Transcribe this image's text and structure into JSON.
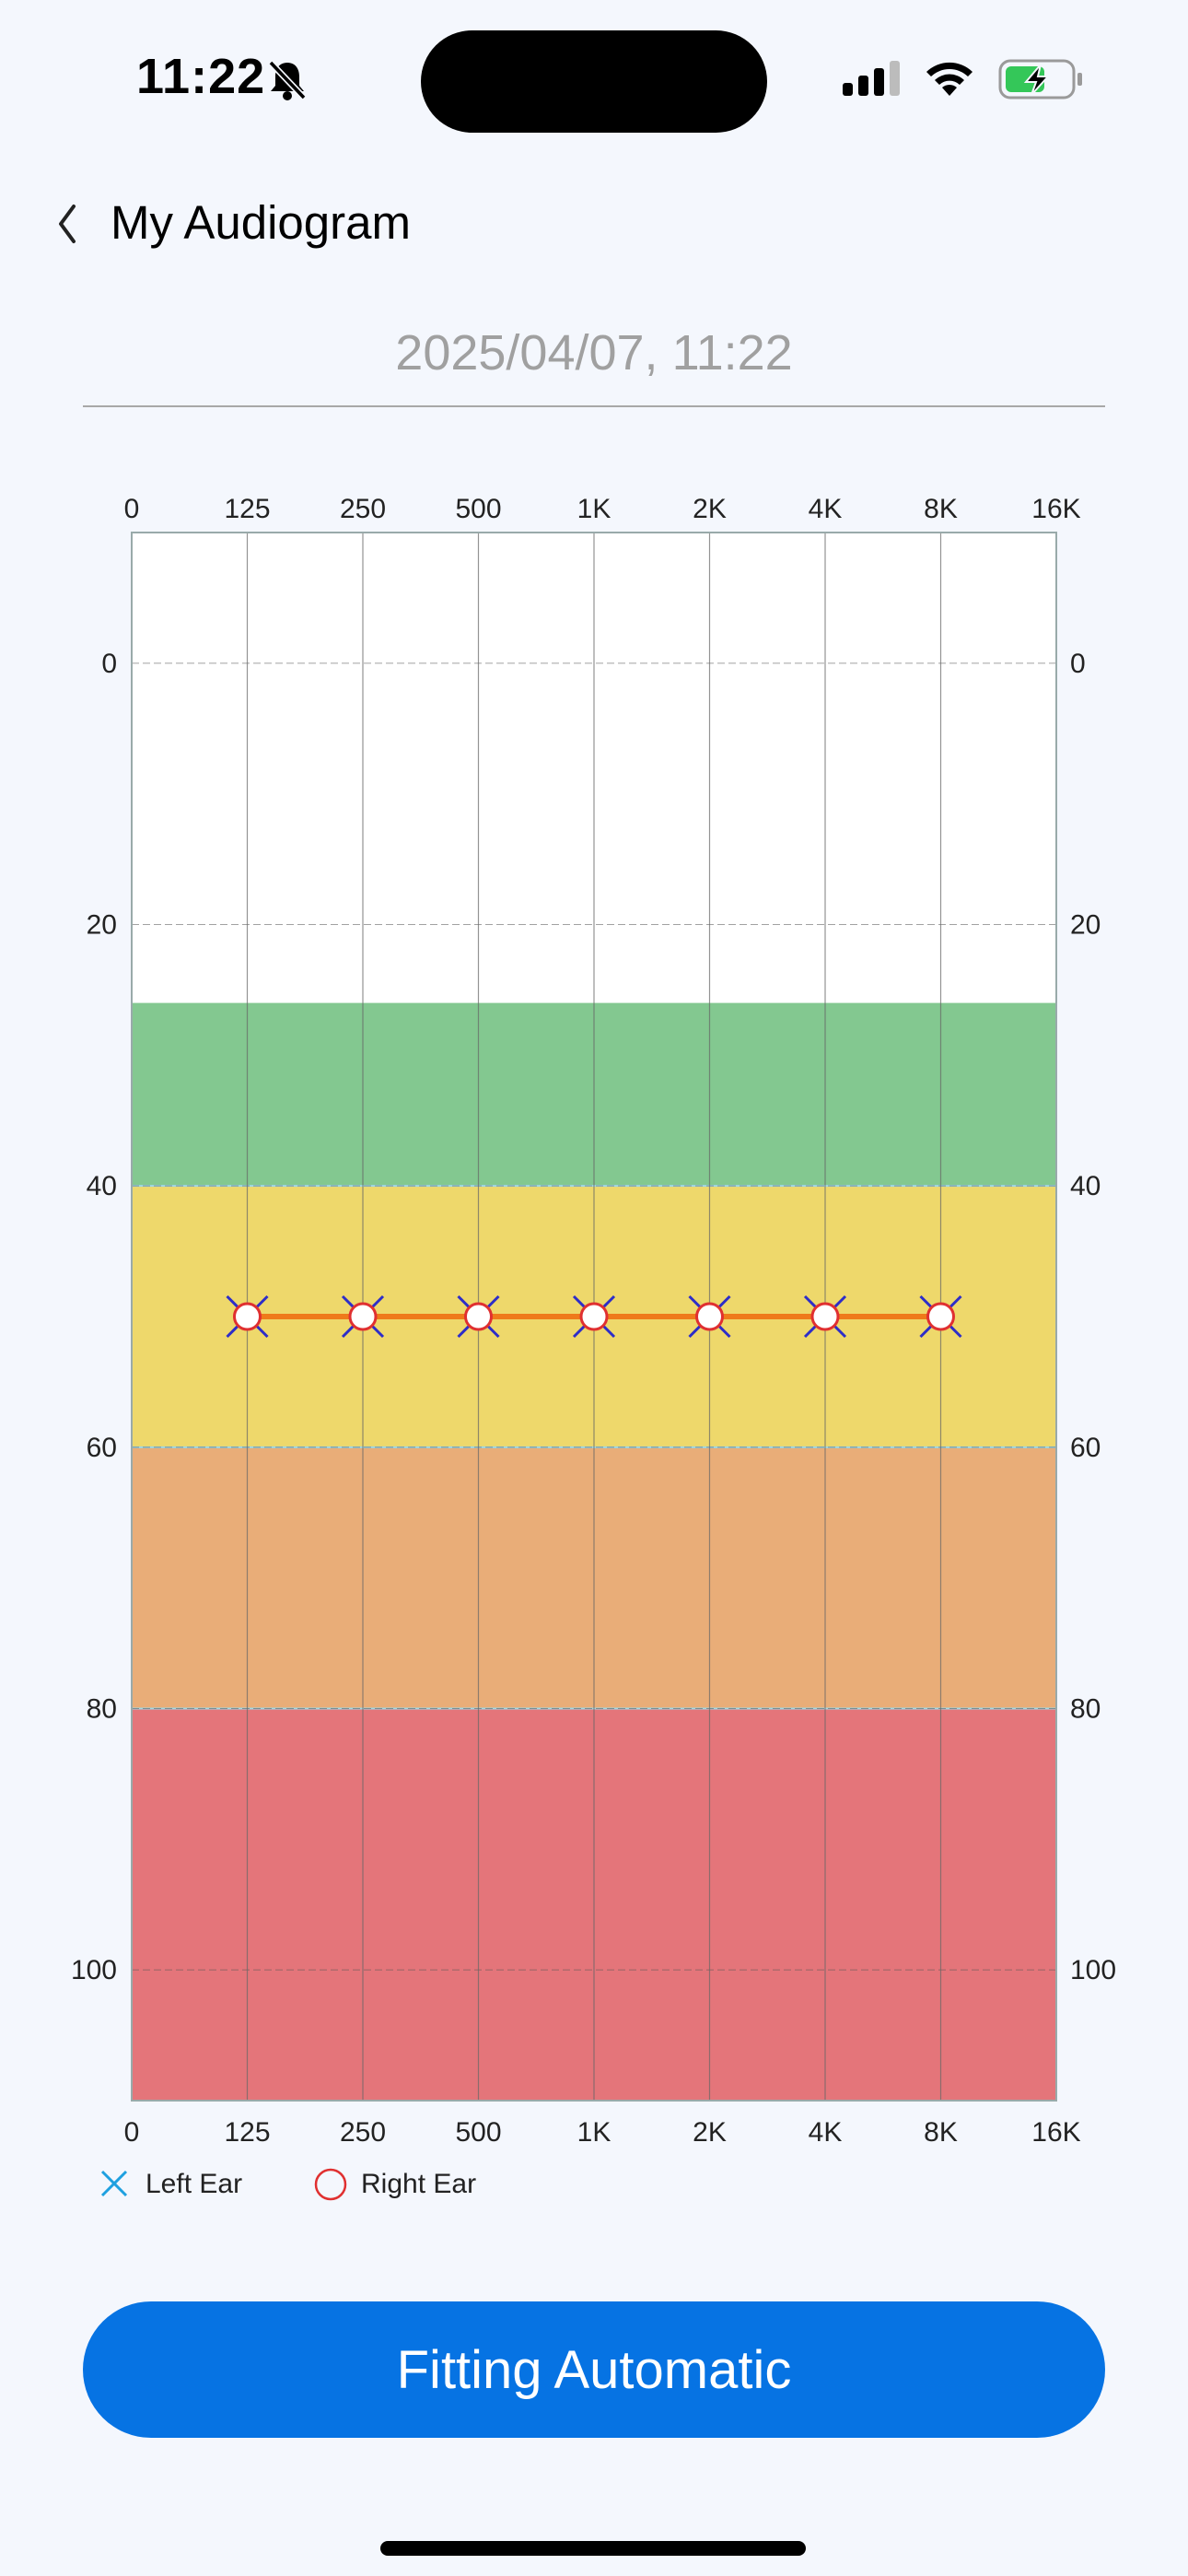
{
  "status_bar": {
    "time": "11:22",
    "icons": [
      "bell-slash-icon",
      "cellular-signal-icon",
      "wifi-icon",
      "battery-charging-icon"
    ],
    "battery_color": "#34c759"
  },
  "header": {
    "back_icon": "chevron-left-icon",
    "title": "My Audiogram"
  },
  "date_text": "2025/04/07,  11:22",
  "legend": {
    "left_ear": "Left Ear",
    "right_ear": "Right Ear",
    "left_color": "#1ea0e0",
    "right_color": "#e03030"
  },
  "fit_button": "Fitting Automatic",
  "chart_data": {
    "type": "line",
    "x_tick_labels": [
      "0",
      "125",
      "250",
      "500",
      "1K",
      "2K",
      "4K",
      "8K",
      "16K"
    ],
    "y_tick_values": [
      0,
      20,
      40,
      60,
      80,
      100
    ],
    "ylim": [
      -10,
      110
    ],
    "y_inverted": true,
    "grid": true,
    "bands": [
      {
        "from": 26,
        "to": 40,
        "color": "#83c890"
      },
      {
        "from": 40,
        "to": 60,
        "color": "#eed86b"
      },
      {
        "from": 60,
        "to": 80,
        "color": "#e9ad78"
      },
      {
        "from": 80,
        "to": 110,
        "color": "#e4757a"
      }
    ],
    "series": [
      {
        "name": "Left Ear",
        "marker": "x",
        "color": "#2d2dc8",
        "x": [
          "125",
          "250",
          "500",
          "1K",
          "2K",
          "4K",
          "8K"
        ],
        "values": [
          50,
          50,
          50,
          50,
          50,
          50,
          50
        ]
      },
      {
        "name": "Right Ear",
        "marker": "circle",
        "color": "#e03030",
        "line_color": "#ef7a1a",
        "x": [
          "125",
          "250",
          "500",
          "1K",
          "2K",
          "4K",
          "8K"
        ],
        "values": [
          50,
          50,
          50,
          50,
          50,
          50,
          50
        ]
      }
    ]
  }
}
